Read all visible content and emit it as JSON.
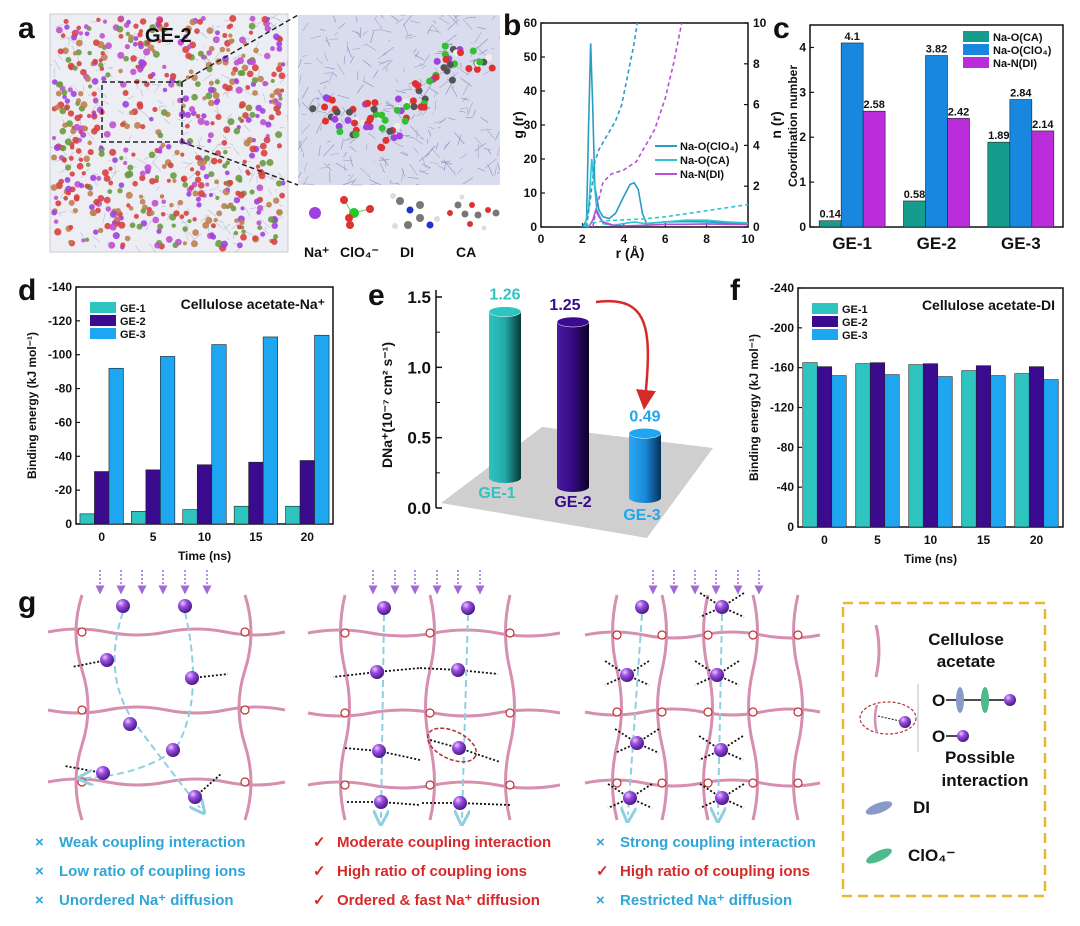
{
  "panel_labels": {
    "a": "a",
    "b": "b",
    "c": "c",
    "d": "d",
    "e": "e",
    "f": "f",
    "g": "g"
  },
  "panel_a": {
    "title": "GE-2",
    "legend": [
      "Na⁺",
      "ClO₄⁻",
      "DI",
      "CA"
    ]
  },
  "chart_data": [
    {
      "panel": "b",
      "type": "line",
      "xlabel": "r (Å)",
      "ylabel": "g (r)",
      "ylabel_right": "n (r)",
      "xlim": [
        0,
        10
      ],
      "ylim": [
        0,
        60
      ],
      "ylim_right": [
        0,
        10
      ],
      "xticks": [
        0,
        2,
        4,
        6,
        8,
        10
      ],
      "yticks": [
        0,
        10,
        20,
        30,
        40,
        50,
        60
      ],
      "yticks_right": [
        0,
        2,
        4,
        6,
        8,
        10
      ],
      "legend_position": "center-right",
      "series": [
        {
          "name": "Na-O(ClO₄)",
          "axis": "left",
          "style": "solid",
          "color": "#2a9cc4",
          "x": [
            2.0,
            2.2,
            2.3,
            2.4,
            2.5,
            2.6,
            2.8,
            3.0,
            3.3,
            3.6,
            4.0,
            4.3,
            4.5,
            4.7,
            4.9,
            5.1,
            6,
            7,
            8,
            9,
            10
          ],
          "y": [
            0,
            2,
            30,
            54,
            35,
            12,
            5,
            3,
            2.5,
            4,
            9,
            12.5,
            13,
            11,
            4,
            1,
            1.5,
            1.6,
            1.5,
            1.2,
            1.0
          ]
        },
        {
          "name": "Na-O(CA)",
          "axis": "left",
          "style": "solid",
          "color": "#2ec4d0",
          "x": [
            2.1,
            2.3,
            2.45,
            2.55,
            2.7,
            3.0,
            3.5,
            4.0,
            4.5,
            5.0,
            6,
            7,
            8,
            9,
            10
          ],
          "y": [
            0,
            5,
            20,
            14,
            5,
            1,
            0.5,
            1,
            1.5,
            1,
            1.5,
            2,
            2,
            1.5,
            1.2
          ]
        },
        {
          "name": "Na-N(DI)",
          "axis": "left",
          "style": "solid",
          "color": "#b84fd6",
          "x": [
            2.3,
            2.5,
            2.65,
            2.8,
            3.0,
            3.5,
            4,
            5,
            6,
            7,
            8,
            9,
            10
          ],
          "y": [
            0,
            2,
            5,
            3,
            1.5,
            0.5,
            0.3,
            0.5,
            0.8,
            0.8,
            0.9,
            0.8,
            0.7
          ]
        },
        {
          "name": "n(r) Na-O(ClO₄)",
          "axis": "right",
          "style": "dashed",
          "color": "#2a9cc4",
          "x": [
            2.2,
            2.4,
            2.6,
            2.8,
            3.2,
            3.6,
            3.9,
            4.1,
            4.3,
            4.5,
            4.65
          ],
          "y": [
            0,
            1.5,
            3.2,
            3.8,
            4.5,
            5.2,
            6,
            7,
            8,
            9,
            10
          ]
        },
        {
          "name": "n(r) Na-O(CA)",
          "axis": "right",
          "style": "dashed",
          "color": "#2ec4d0",
          "x": [
            2.2,
            2.5,
            3.0,
            4,
            5,
            6,
            7,
            8,
            9,
            10
          ],
          "y": [
            0,
            0.2,
            0.3,
            0.35,
            0.4,
            0.5,
            0.65,
            0.8,
            0.95,
            1.1
          ]
        },
        {
          "name": "n(r) Na-N(DI)",
          "axis": "right",
          "style": "dashed",
          "color": "#b84fd6",
          "x": [
            2.5,
            2.7,
            3.0,
            3.4,
            4.0,
            4.6,
            5.0,
            5.5,
            6.0,
            6.4,
            6.8
          ],
          "y": [
            0,
            1,
            2.2,
            2.6,
            2.8,
            3.2,
            3.9,
            4.8,
            6.3,
            8,
            10
          ]
        }
      ]
    },
    {
      "panel": "c",
      "type": "bar",
      "ylabel": "Coordination number",
      "categories": [
        "GE-1",
        "GE-2",
        "GE-3"
      ],
      "ylim": [
        0,
        4.5
      ],
      "yticks": [
        0,
        1,
        2,
        3,
        4
      ],
      "legend_position": "top-right",
      "series": [
        {
          "name": "Na-O(CA)",
          "color": "#169c8c",
          "values": [
            0.14,
            0.58,
            1.89
          ],
          "labels": [
            "0.14",
            "0.58",
            "1.89"
          ]
        },
        {
          "name": "Na-O(ClO₄)",
          "color": "#1787e0",
          "values": [
            4.1,
            3.82,
            2.84
          ],
          "labels": [
            "4.1",
            "3.82",
            "2.84"
          ]
        },
        {
          "name": "Na-N(DI)",
          "color": "#bb2ddb",
          "values": [
            2.58,
            2.42,
            2.14
          ],
          "labels": [
            "2.58",
            "2.42",
            "2.14"
          ]
        }
      ]
    },
    {
      "panel": "d",
      "type": "bar",
      "title": "Cellulose acetate-Na⁺",
      "xlabel": "Time (ns)",
      "ylabel": "Binding energy (kJ mol⁻¹)",
      "categories": [
        "0",
        "5",
        "10",
        "15",
        "20"
      ],
      "ylim": [
        0,
        -140
      ],
      "yticks": [
        0,
        -20,
        -40,
        -60,
        -80,
        -100,
        -120,
        -140
      ],
      "legend_position": "top-left",
      "series": [
        {
          "name": "GE-1",
          "color": "#2ec4bf",
          "values": [
            -6,
            -7.5,
            -8.5,
            -10.5,
            -10.5
          ]
        },
        {
          "name": "GE-2",
          "color": "#3a0b8e",
          "values": [
            -31,
            -32,
            -35,
            -36.5,
            -37.5
          ]
        },
        {
          "name": "GE-3",
          "color": "#1ea6f0",
          "values": [
            -92,
            -99,
            -106,
            -110.5,
            -111.5
          ]
        }
      ]
    },
    {
      "panel": "e",
      "type": "bar",
      "ylabel": "DNa⁺(10⁻⁷ cm² s⁻¹)",
      "categories": [
        "GE-1",
        "GE-2",
        "GE-3"
      ],
      "ylim": [
        0,
        1.5
      ],
      "yticks": [
        "0.0",
        "0.5",
        "1.0",
        "1.5"
      ],
      "series": [
        {
          "name": "D_Na+",
          "values": [
            1.26,
            1.25,
            0.49
          ],
          "labels": [
            "1.26",
            "1.25",
            "0.49"
          ],
          "colors": [
            "#2ec4c0",
            "#3a0b8e",
            "#1ea6f0"
          ]
        }
      ]
    },
    {
      "panel": "f",
      "type": "bar",
      "title": "Cellulose acetate-DI",
      "xlabel": "Time (ns)",
      "ylabel": "Binding energy (kJ mol⁻¹)",
      "categories": [
        "0",
        "5",
        "10",
        "15",
        "20"
      ],
      "ylim": [
        0,
        -240
      ],
      "yticks": [
        0,
        -40,
        -80,
        -120,
        -160,
        -200,
        -240
      ],
      "legend_position": "top-left",
      "series": [
        {
          "name": "GE-1",
          "color": "#2ec4bf",
          "values": [
            -165,
            -164,
            -163,
            -157,
            -154
          ]
        },
        {
          "name": "GE-2",
          "color": "#3a0b8e",
          "values": [
            -161,
            -165,
            -164,
            -162,
            -161
          ]
        },
        {
          "name": "GE-3",
          "color": "#1ea6f0",
          "values": [
            -152,
            -153,
            -151,
            -152,
            -148
          ]
        }
      ]
    }
  ],
  "panel_g": {
    "columns": [
      {
        "items": [
          {
            "mark": "×",
            "status": "bad",
            "text": "Weak coupling interaction"
          },
          {
            "mark": "×",
            "status": "bad",
            "text": "Low ratio of coupling ions"
          },
          {
            "mark": "×",
            "status": "bad",
            "text": "Unordered Na⁺ diffusion"
          }
        ]
      },
      {
        "items": [
          {
            "mark": "✓",
            "status": "good",
            "text": "Moderate coupling interaction"
          },
          {
            "mark": "✓",
            "status": "good",
            "text": "High ratio of coupling ions"
          },
          {
            "mark": "✓",
            "status": "good",
            "text": "Ordered & fast Na⁺ diffusion"
          }
        ]
      },
      {
        "items": [
          {
            "mark": "×",
            "status": "bad",
            "text": "Strong coupling interaction"
          },
          {
            "mark": "✓",
            "status": "good",
            "text": "High ratio of coupling ions"
          },
          {
            "mark": "×",
            "status": "bad",
            "text": "Restricted Na⁺ diffusion"
          }
        ]
      }
    ],
    "legend": {
      "ca_label_lines": [
        "Cellulose",
        "acetate"
      ],
      "interaction_label_lines": [
        "Possible",
        "interaction"
      ],
      "o_label": "O",
      "di_label": "DI",
      "clo4_label": "ClO₄⁻"
    },
    "colors": {
      "good": "#d42a2a",
      "bad": "#2ea6d6",
      "chain": "#d68fb0",
      "ion": "#8a3fd0",
      "path": "#8fd0e0",
      "legend_border": "#e8b830",
      "di": "#8a9ac8",
      "clo4": "#4cba8a"
    }
  }
}
